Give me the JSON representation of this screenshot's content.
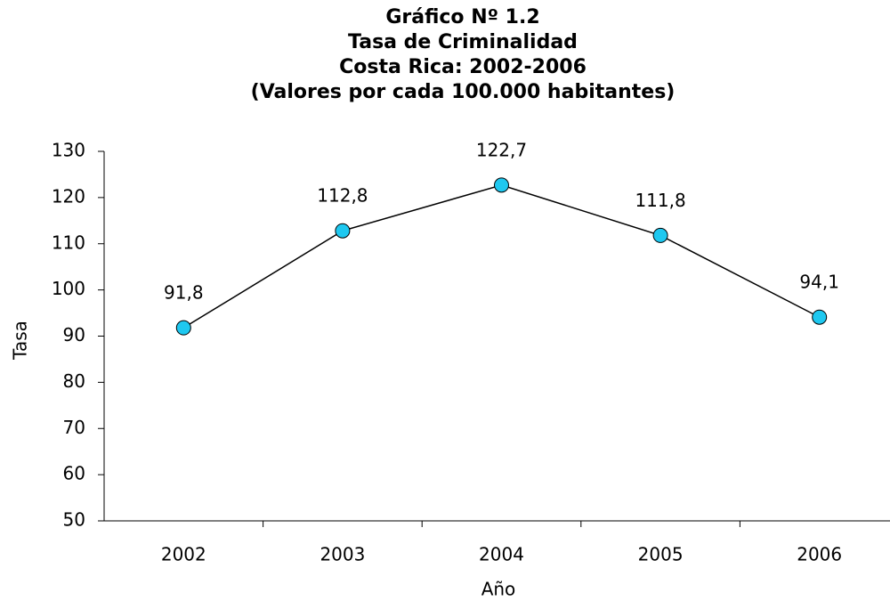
{
  "chart_data": {
    "type": "line",
    "title": [
      "Gráfico Nº 1.2",
      "Tasa de Criminalidad",
      "Costa Rica: 2002-2006",
      "(Valores por cada 100.000 habitantes)"
    ],
    "x_label": "Año",
    "y_label": "Tasa",
    "categories": [
      "2002",
      "2003",
      "2004",
      "2005",
      "2006"
    ],
    "values": [
      91.8,
      112.8,
      122.7,
      111.8,
      94.1
    ],
    "value_labels": [
      "91,8",
      "112,8",
      "122,7",
      "111,8",
      "94,1"
    ],
    "color": "#1ec8f0",
    "line_color": "#000000",
    "ylim": [
      50,
      130
    ],
    "yticks": [
      50,
      60,
      70,
      80,
      90,
      100,
      110,
      120,
      130
    ],
    "grid": false
  }
}
